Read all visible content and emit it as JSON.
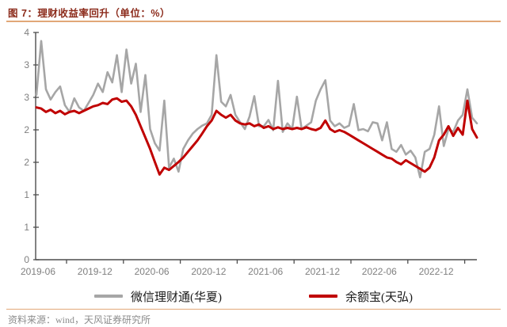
{
  "header": {
    "title": "图 7：理财收益率回升（单位：%）"
  },
  "footer": {
    "source": "资料来源：wind，天风证券研究所"
  },
  "legend": {
    "series": [
      {
        "label": "微信理财通(华夏)",
        "color": "#A6A6A6"
      },
      {
        "label": "余额宝(天弘)",
        "color": "#C00000"
      }
    ]
  },
  "colors": {
    "title": "#8B2A1A",
    "accent_rule": "#E2A878",
    "axis": "#4D4D4D",
    "tick_label": "#7F7F7F",
    "series_gray": "#A6A6A6",
    "series_red": "#C00000",
    "legend_text": "#1A1A1A",
    "source_text": "#8C8C8C"
  },
  "chart_data": {
    "type": "line",
    "title": "图 7：理财收益率回升（单位：%）",
    "unit": "%",
    "xlabel": "",
    "ylabel": "",
    "ylim": [
      0,
      4
    ],
    "grid": false,
    "legend_position": "bottom",
    "x_start": "2019-06",
    "x_step_months": 0.5,
    "x_tick_labels": [
      "2019-06",
      "2019-12",
      "2020-06",
      "2020-12",
      "2021-06",
      "2021-12",
      "2022-06",
      "2022-12"
    ],
    "y_tick_labels": [
      "4",
      "3",
      "3",
      "2",
      "2",
      "1",
      "1",
      "0"
    ],
    "series": [
      {
        "name": "微信理财通(华夏)",
        "color": "#A6A6A6",
        "values": [
          2.9,
          3.85,
          3.0,
          2.82,
          2.95,
          3.05,
          2.72,
          2.6,
          2.84,
          2.68,
          2.62,
          2.76,
          2.9,
          3.1,
          2.95,
          3.3,
          3.12,
          3.6,
          2.95,
          3.7,
          3.1,
          3.45,
          2.6,
          3.25,
          2.3,
          2.05,
          1.92,
          2.8,
          1.62,
          1.78,
          1.55,
          1.95,
          2.1,
          2.22,
          2.3,
          2.36,
          2.4,
          2.55,
          3.6,
          2.78,
          2.7,
          2.9,
          2.55,
          2.42,
          2.3,
          2.52,
          2.88,
          2.35,
          2.35,
          2.46,
          2.28,
          3.15,
          2.25,
          2.4,
          2.3,
          2.87,
          2.3,
          2.36,
          2.42,
          2.8,
          3.0,
          3.16,
          2.45,
          2.35,
          2.4,
          2.32,
          2.36,
          2.74,
          2.28,
          2.3,
          2.26,
          2.42,
          2.4,
          2.1,
          2.42,
          1.95,
          1.9,
          2.02,
          1.85,
          1.92,
          1.8,
          1.45,
          1.9,
          1.95,
          2.2,
          2.7,
          2.0,
          2.3,
          2.25,
          2.45,
          2.55,
          3.0,
          2.5,
          2.4
        ]
      },
      {
        "name": "余额宝(天弘)",
        "color": "#C00000",
        "values": [
          2.68,
          2.66,
          2.6,
          2.64,
          2.58,
          2.62,
          2.56,
          2.6,
          2.62,
          2.58,
          2.62,
          2.66,
          2.7,
          2.72,
          2.76,
          2.74,
          2.82,
          2.84,
          2.78,
          2.8,
          2.7,
          2.55,
          2.35,
          2.15,
          1.95,
          1.72,
          1.5,
          1.62,
          1.58,
          1.65,
          1.72,
          1.8,
          1.9,
          2.0,
          2.1,
          2.22,
          2.35,
          2.45,
          2.62,
          2.55,
          2.5,
          2.55,
          2.45,
          2.4,
          2.38,
          2.4,
          2.35,
          2.38,
          2.32,
          2.35,
          2.3,
          2.33,
          2.3,
          2.32,
          2.3,
          2.32,
          2.3,
          2.33,
          2.3,
          2.28,
          2.32,
          2.45,
          2.3,
          2.25,
          2.28,
          2.25,
          2.2,
          2.15,
          2.1,
          2.05,
          2.0,
          1.95,
          1.9,
          1.85,
          1.8,
          1.78,
          1.72,
          1.68,
          1.75,
          1.7,
          1.65,
          1.6,
          1.55,
          1.62,
          1.8,
          2.1,
          2.2,
          2.35,
          2.18,
          2.32,
          2.2,
          2.8,
          2.3,
          2.15
        ]
      }
    ]
  }
}
